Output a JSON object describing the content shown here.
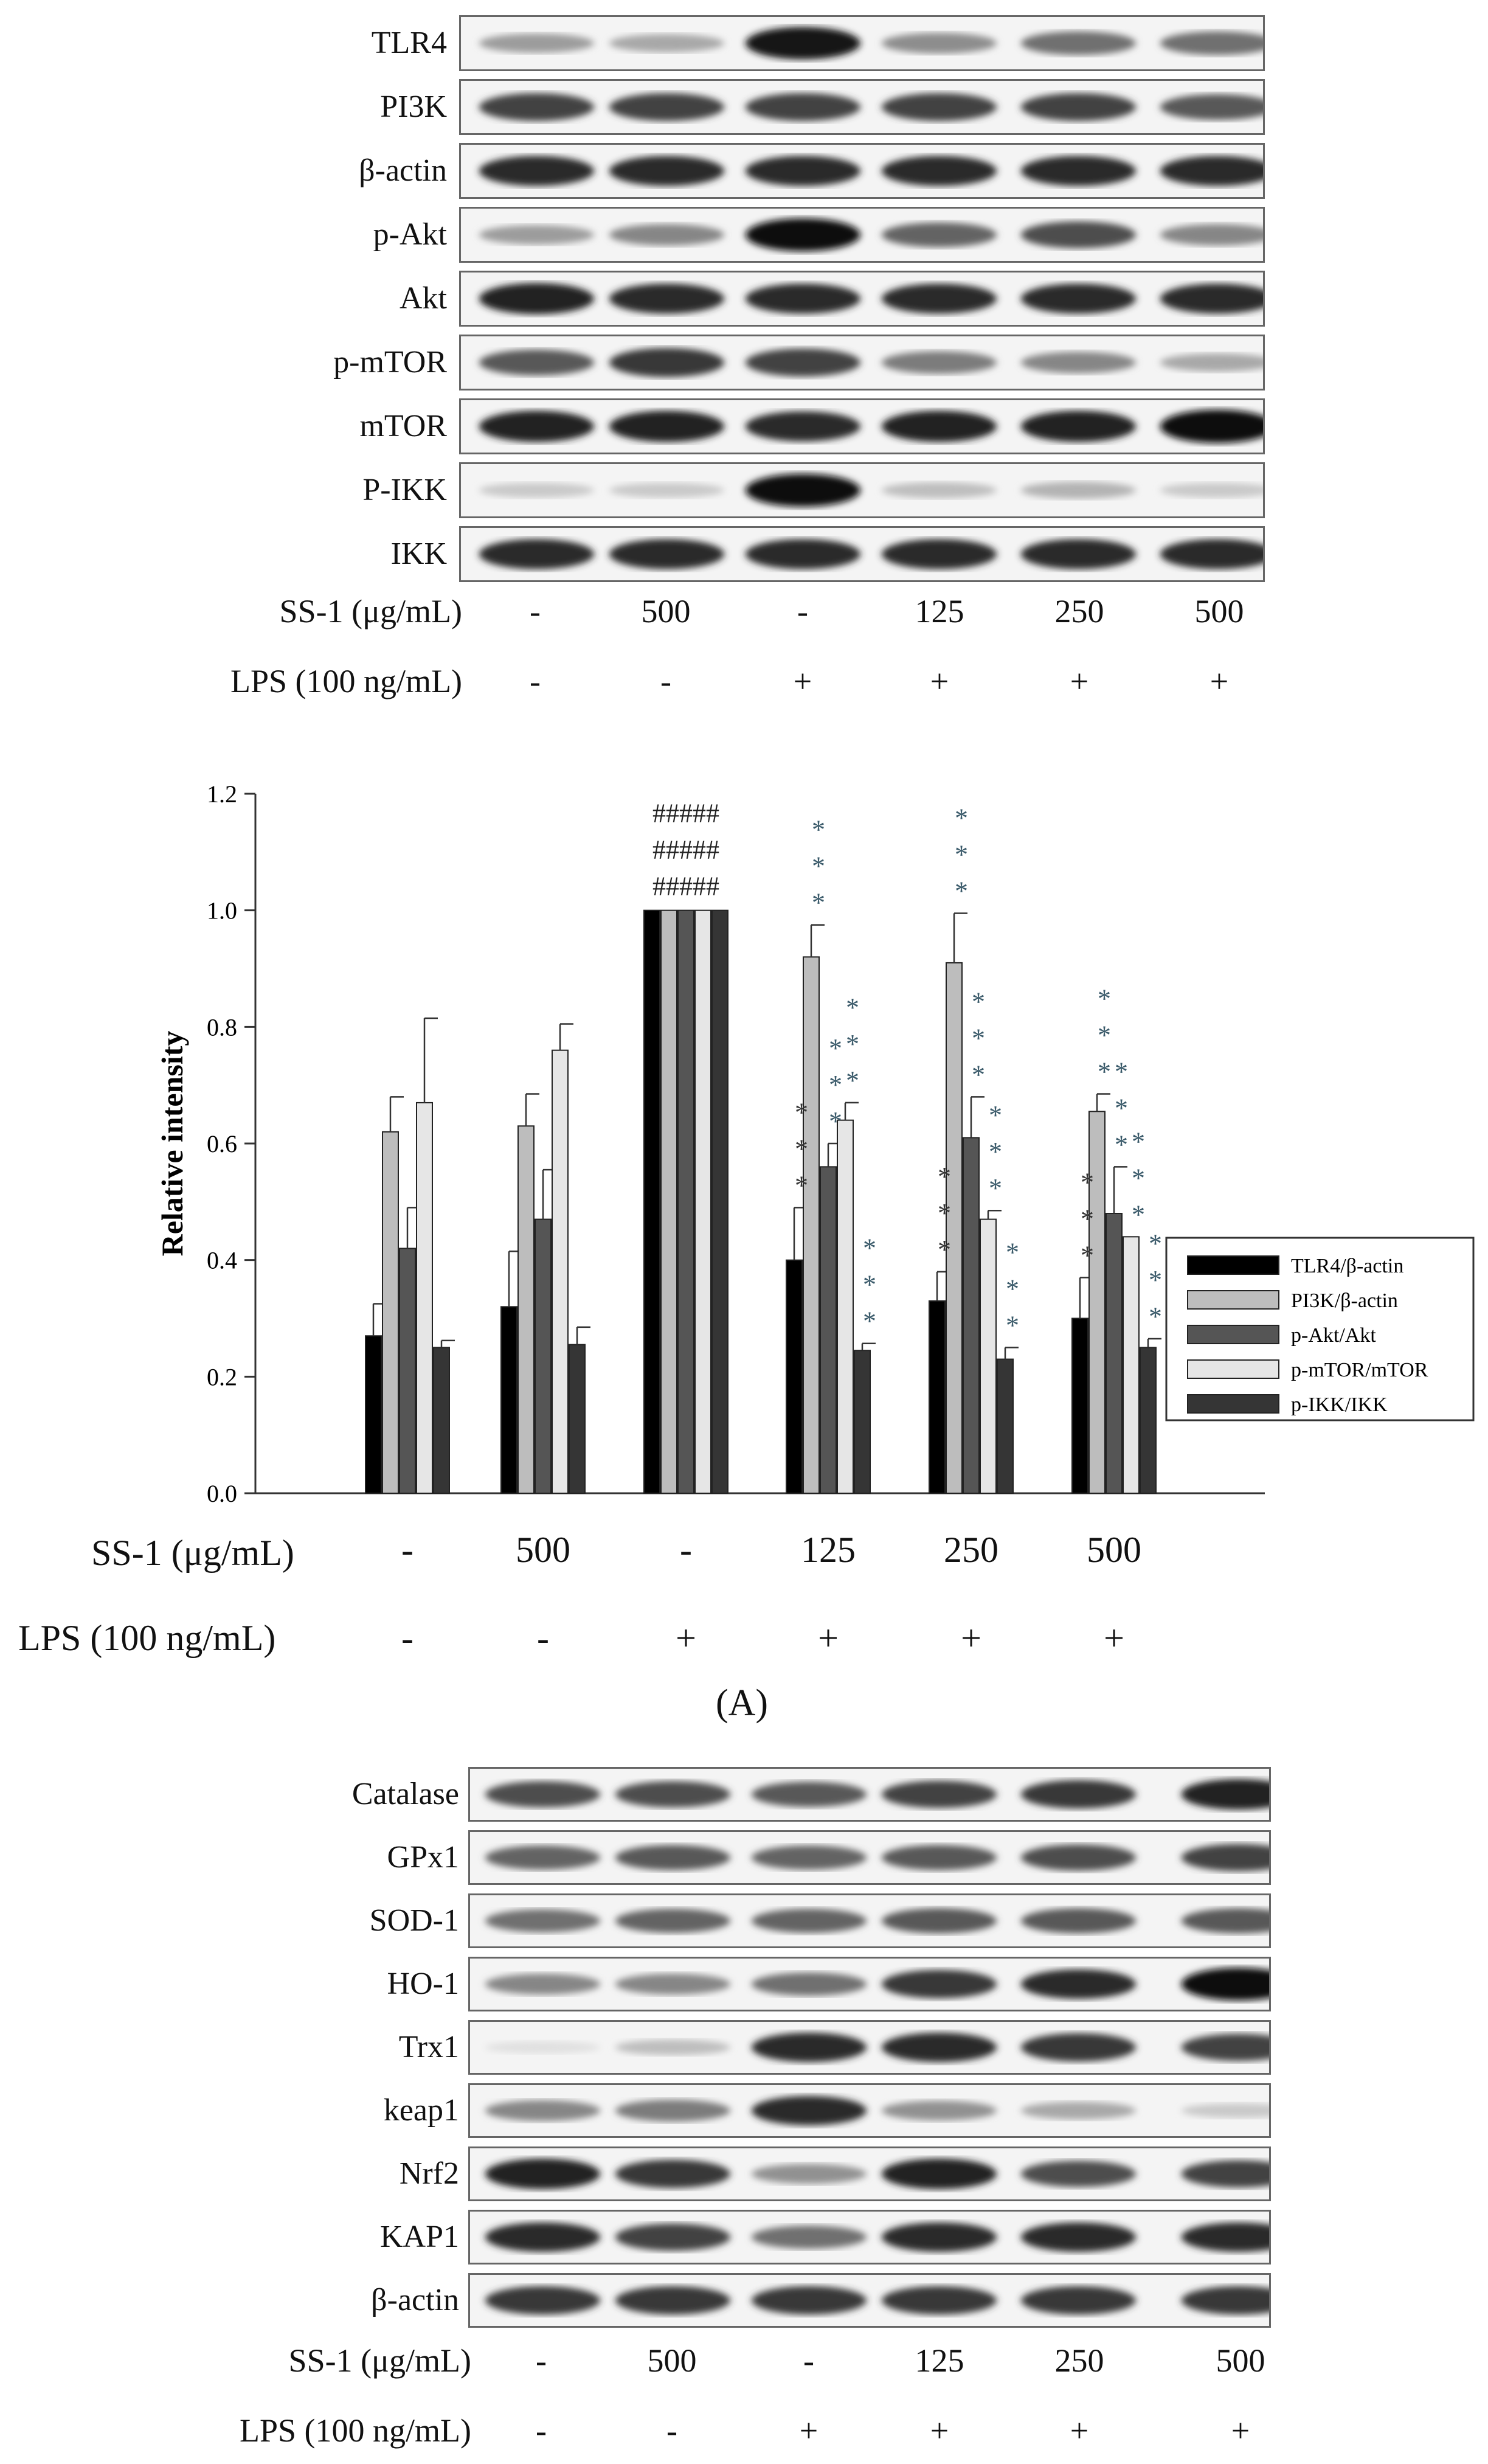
{
  "panelA": {
    "blots": [
      {
        "label": "TLR4",
        "intensity": [
          0.35,
          0.3,
          0.95,
          0.42,
          0.55,
          0.55
        ]
      },
      {
        "label": "PI3K",
        "intensity": [
          0.75,
          0.75,
          0.75,
          0.75,
          0.75,
          0.65
        ]
      },
      {
        "label": "β-actin",
        "intensity": [
          0.85,
          0.85,
          0.85,
          0.85,
          0.85,
          0.85
        ]
      },
      {
        "label": "p-Akt",
        "intensity": [
          0.35,
          0.45,
          0.98,
          0.6,
          0.7,
          0.45
        ]
      },
      {
        "label": "Akt",
        "intensity": [
          0.9,
          0.85,
          0.85,
          0.85,
          0.85,
          0.85
        ]
      },
      {
        "label": "p-mTOR",
        "intensity": [
          0.65,
          0.8,
          0.75,
          0.5,
          0.45,
          0.3
        ]
      },
      {
        "label": "mTOR",
        "intensity": [
          0.9,
          0.9,
          0.85,
          0.9,
          0.9,
          1.0
        ]
      },
      {
        "label": "P-IKK",
        "intensity": [
          0.15,
          0.15,
          0.98,
          0.2,
          0.25,
          0.15
        ]
      },
      {
        "label": "IKK",
        "intensity": [
          0.85,
          0.85,
          0.85,
          0.85,
          0.85,
          0.85
        ]
      }
    ],
    "ss1_label": "SS-1 (μg/mL)",
    "ss1_values": [
      "-",
      "500",
      "-",
      "125",
      "250",
      "500"
    ],
    "lps_label": "LPS (100 ng/mL)",
    "lps_values": [
      "-",
      "-",
      "+",
      "+",
      "+",
      "+"
    ]
  },
  "chart_data": {
    "type": "bar",
    "categories": [
      "-",
      "500",
      "-",
      "125",
      "250",
      "500"
    ],
    "ylabel": "Relative intensity",
    "ylim": [
      0,
      1.2
    ],
    "yticks": [
      "0.0",
      "0.2",
      "0.4",
      "0.6",
      "0.8",
      "1.0",
      "1.2"
    ],
    "legend_position": "bottom-right",
    "series": [
      {
        "name": "TLR4/β-actin",
        "color": "#000000",
        "values": [
          0.27,
          0.32,
          1.0,
          0.4,
          0.33,
          0.3
        ],
        "errors": [
          0.055,
          0.095,
          0,
          0.09,
          0.05,
          0.07
        ]
      },
      {
        "name": "PI3K/β-actin",
        "color": "#bdbdbd",
        "values": [
          0.62,
          0.63,
          1.0,
          0.92,
          0.91,
          0.655
        ],
        "errors": [
          0.06,
          0.055,
          0,
          0.055,
          0.085,
          0.03
        ]
      },
      {
        "name": "p-Akt/Akt",
        "color": "#555555",
        "values": [
          0.42,
          0.47,
          1.0,
          0.56,
          0.61,
          0.48
        ],
        "errors": [
          0.07,
          0.085,
          0,
          0.04,
          0.07,
          0.08
        ]
      },
      {
        "name": "p-mTOR/mTOR",
        "color": "#e6e6e6",
        "values": [
          0.67,
          0.76,
          1.0,
          0.64,
          0.47,
          0.44
        ],
        "errors": [
          0.145,
          0.045,
          0,
          0.03,
          0.015,
          0.0
        ]
      },
      {
        "name": "p-IKK/IKK",
        "color": "#353535",
        "values": [
          0.25,
          0.255,
          1.0,
          0.245,
          0.23,
          0.25
        ],
        "errors": [
          0.012,
          0.03,
          0,
          0.012,
          0.02,
          0.015
        ]
      }
    ],
    "hash_annotation": "#####",
    "star_annotation": "*",
    "xcond": {
      "ss1_label": "SS-1 (μg/mL)",
      "ss1_values": [
        "-",
        "500",
        "-",
        "125",
        "250",
        "500"
      ],
      "lps_label": "LPS (100 ng/mL)",
      "lps_values": [
        "-",
        "-",
        "+",
        "+",
        "+",
        "+"
      ]
    }
  },
  "panel_label": "(A)",
  "panelB": {
    "blots": [
      {
        "label": "Catalase",
        "intensity": [
          0.7,
          0.7,
          0.65,
          0.75,
          0.8,
          0.9
        ]
      },
      {
        "label": "GPx1",
        "intensity": [
          0.6,
          0.65,
          0.6,
          0.65,
          0.7,
          0.75
        ]
      },
      {
        "label": "SOD-1",
        "intensity": [
          0.55,
          0.6,
          0.6,
          0.65,
          0.65,
          0.65
        ]
      },
      {
        "label": "HO-1",
        "intensity": [
          0.45,
          0.45,
          0.55,
          0.8,
          0.85,
          1.0
        ]
      },
      {
        "label": "Trx1",
        "intensity": [
          0.05,
          0.2,
          0.85,
          0.85,
          0.8,
          0.75
        ]
      },
      {
        "label": "keap1",
        "intensity": [
          0.45,
          0.5,
          0.85,
          0.4,
          0.3,
          0.15
        ]
      },
      {
        "label": "Nrf2",
        "intensity": [
          0.9,
          0.8,
          0.4,
          0.9,
          0.7,
          0.75
        ]
      },
      {
        "label": "KAP1",
        "intensity": [
          0.85,
          0.75,
          0.55,
          0.85,
          0.85,
          0.85
        ]
      },
      {
        "label": "β-actin",
        "intensity": [
          0.8,
          0.8,
          0.8,
          0.8,
          0.8,
          0.8
        ]
      }
    ],
    "ss1_label": "SS-1 (μg/mL)",
    "ss1_values": [
      "-",
      "500",
      "-",
      "125",
      "250",
      "500"
    ],
    "lps_label": "LPS (100 ng/mL)",
    "lps_values": [
      "-",
      "-",
      "+",
      "+",
      "+",
      "+"
    ]
  }
}
